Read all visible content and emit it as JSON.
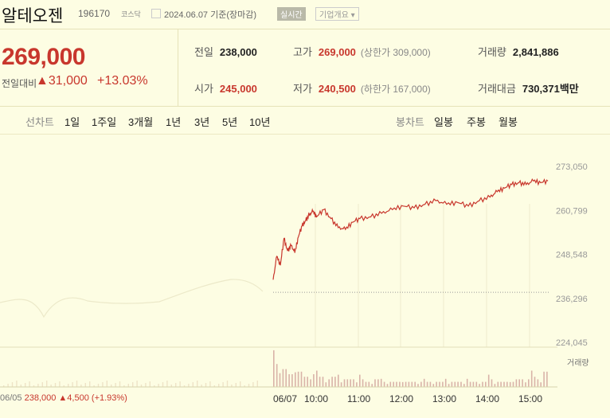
{
  "header": {
    "name": "알테오젠",
    "code": "196170",
    "market": "코스닥",
    "as_of": "2024.06.07  기준(장마감)",
    "realtime_badge": "실시간",
    "company_info_label": "기업개요 ▾"
  },
  "price": {
    "current": "269,000",
    "change_label": "전일대비",
    "change_abs": "▲31,000",
    "change_pct": "+13.03%",
    "accent_color": "#c8372d"
  },
  "stats": {
    "prev_close": {
      "label": "전일",
      "value": "238,000"
    },
    "open": {
      "label": "시가",
      "value": "245,000"
    },
    "high": {
      "label": "고가",
      "value": "269,000",
      "limit": "(상한가 309,000)"
    },
    "low": {
      "label": "저가",
      "value": "240,500",
      "limit": "(하한가 167,000)"
    },
    "volume": {
      "label": "거래량",
      "value": "2,841,886"
    },
    "trade_value": {
      "label": "거래대금",
      "value": "730,371",
      "unit": "백만"
    }
  },
  "tabs": {
    "line_chart_label": "선차트",
    "line_ranges": [
      "1일",
      "1주일",
      "3개월",
      "1년",
      "3년",
      "5년",
      "10년"
    ],
    "candle_chart_label": "봉차트",
    "candle_ranges": [
      "일봉",
      "주봉",
      "월봉"
    ]
  },
  "chart_data": {
    "type": "line",
    "y_ticks": [
      "273,050",
      "260,799",
      "248,548",
      "236,296",
      "224,045"
    ],
    "ylim": [
      224045,
      273050
    ],
    "x_ticks": [
      "06/07",
      "10:00",
      "11:00",
      "12:00",
      "13:00",
      "14:00",
      "15:00"
    ],
    "prev_close_line": 238000,
    "volume_label": "거래량",
    "prev_day_label": {
      "date": "06/05",
      "close": "238,000",
      "change": "▲4,500",
      "pct": "(+1.93%)"
    },
    "series": [
      {
        "x": [
          "09:00",
          "09:05",
          "09:10",
          "09:15",
          "09:20",
          "09:25",
          "09:30",
          "09:35",
          "09:40",
          "09:45",
          "09:50",
          "09:55",
          "10:00",
          "10:10",
          "10:20",
          "10:30",
          "10:40",
          "10:50",
          "11:00",
          "11:15",
          "11:30",
          "11:45",
          "12:00",
          "12:15",
          "12:30",
          "12:45",
          "13:00",
          "13:15",
          "13:30",
          "13:45",
          "14:00",
          "14:10",
          "14:20",
          "14:30",
          "14:40",
          "14:50",
          "15:00",
          "15:10",
          "15:20"
        ],
        "values": [
          241500,
          248000,
          245500,
          253000,
          249500,
          251000,
          249000,
          253500,
          256500,
          258000,
          259500,
          260500,
          259000,
          261000,
          258500,
          256000,
          255500,
          257500,
          258500,
          259000,
          260000,
          261000,
          262000,
          261500,
          262500,
          263500,
          262500,
          263000,
          262000,
          263500,
          264500,
          266000,
          267000,
          268000,
          268500,
          268000,
          269000,
          268500,
          269000
        ]
      }
    ],
    "volume_note": "volume bars (relative)",
    "volume_values": [
      9,
      7,
      5,
      6,
      4,
      5,
      4,
      3,
      4,
      3,
      3,
      3,
      3,
      2,
      3,
      2,
      2,
      2,
      2,
      2,
      2,
      2,
      2,
      2,
      2,
      2,
      2,
      2,
      2,
      2,
      3,
      2,
      2,
      2,
      3,
      3,
      4,
      3,
      6
    ]
  }
}
